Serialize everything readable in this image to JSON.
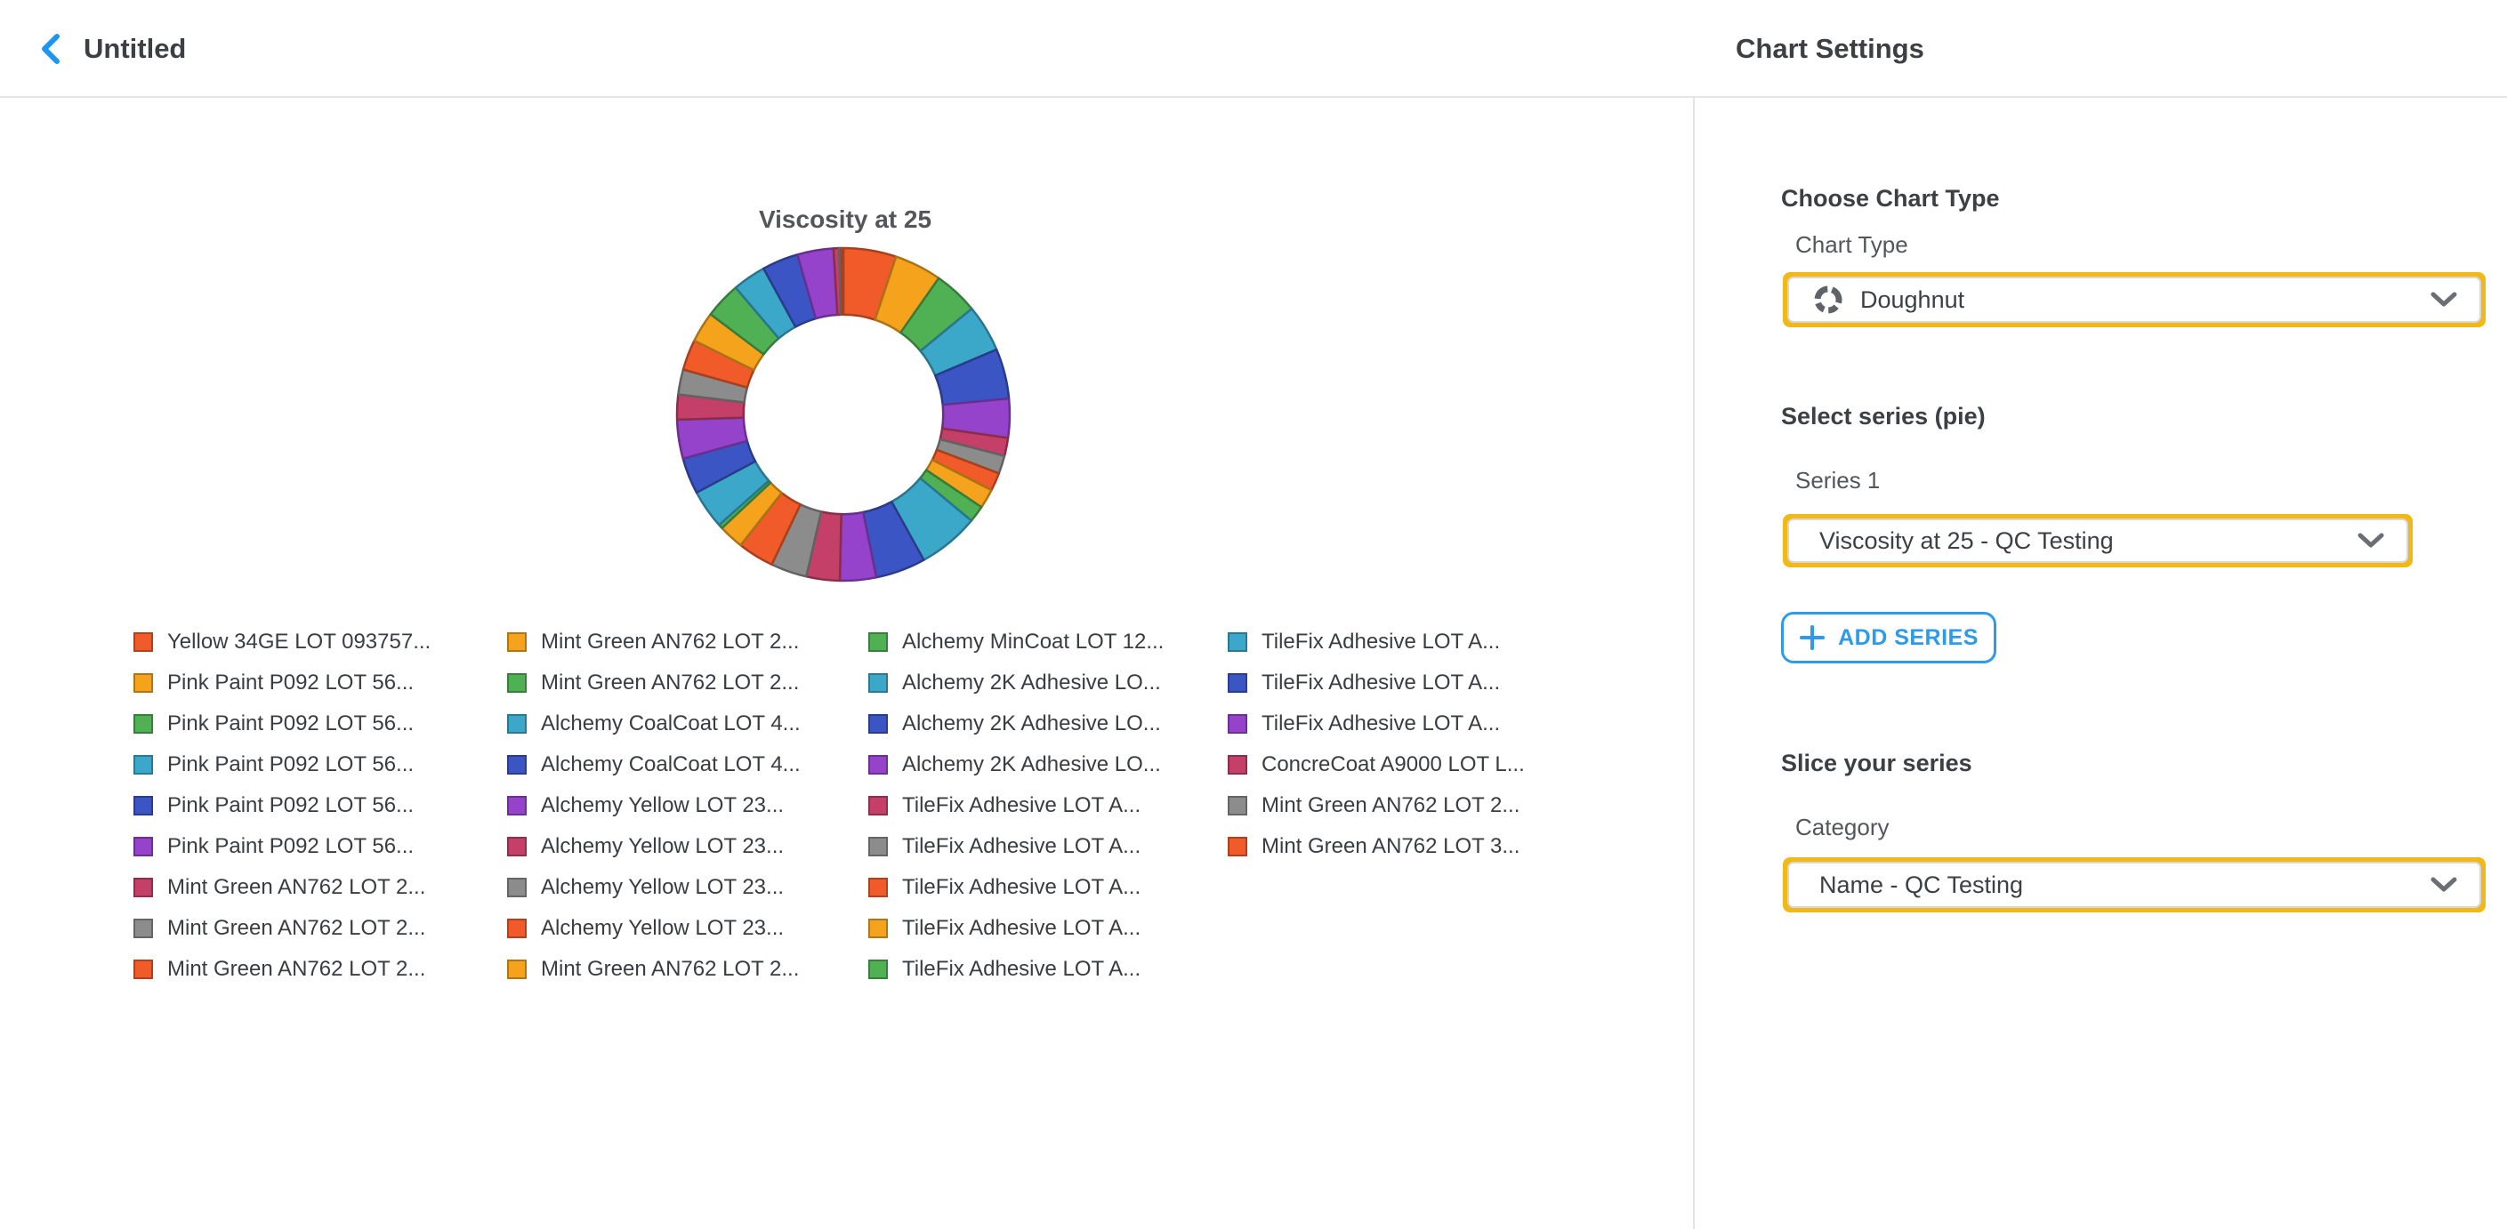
{
  "header": {
    "title": "Untitled",
    "settings_title": "Chart Settings"
  },
  "panel": {
    "choose_chart_type_heading": "Choose Chart Type",
    "chart_type_label": "Chart Type",
    "chart_type_value": "Doughnut",
    "select_series_heading": "Select series (pie)",
    "series_label": "Series 1",
    "series_value": "Viscosity at 25 - QC Testing",
    "add_series_label": "ADD SERIES",
    "slice_heading": "Slice your series",
    "category_label": "Category",
    "category_value": "Name - QC Testing",
    "highlight_color": "#f2b818",
    "accent_blue": "#2e9bea"
  },
  "chart_data": {
    "type": "doughnut",
    "title": "Viscosity at 25",
    "legend_position": "bottom",
    "inner_radius_ratio": 0.6,
    "start_angle_deg": -90,
    "palette": [
      "#f15b2a",
      "#f5a31c",
      "#4fb054",
      "#3ba7c9",
      "#3b55c4",
      "#9643cc",
      "#c44069",
      "#8c8c8c"
    ],
    "labels": [
      "Yellow 34GE LOT 093757...",
      "Pink Paint P092 LOT 56...",
      "Pink Paint P092 LOT 56...",
      "Pink Paint P092 LOT 56...",
      "Pink Paint P092 LOT 56...",
      "Pink Paint P092 LOT 56...",
      "Mint Green AN762 LOT 2...",
      "Mint Green AN762 LOT 2...",
      "Mint Green AN762 LOT 2...",
      "Mint Green AN762 LOT 2...",
      "Mint Green AN762 LOT 2...",
      "Alchemy CoalCoat LOT 4...",
      "Alchemy CoalCoat LOT 4...",
      "Alchemy Yellow  LOT 23...",
      "Alchemy Yellow  LOT 23...",
      "Alchemy Yellow  LOT 23...",
      "Alchemy Yellow  LOT 23...",
      "Mint Green AN762 LOT 2...",
      "Alchemy MinCoat LOT 12...",
      "Alchemy 2K Adhesive LO...",
      "Alchemy 2K Adhesive LO...",
      "Alchemy 2K Adhesive LO...",
      "TileFix Adhesive LOT A...",
      "TileFix Adhesive LOT A...",
      "TileFix Adhesive LOT A...",
      "TileFix Adhesive LOT A...",
      "TileFix Adhesive LOT A...",
      "TileFix Adhesive LOT A...",
      "TileFix Adhesive LOT A...",
      "TileFix Adhesive LOT A...",
      "ConcreCoat A9000 LOT L...",
      "Mint Green AN762 LOT 2...",
      "Mint Green AN762 LOT 3..."
    ],
    "values": [
      19,
      17,
      16,
      17,
      18,
      14,
      6.5,
      6.5,
      6.5,
      7,
      6,
      22,
      18,
      13,
      12,
      13,
      13,
      9,
      1.5,
      14,
      13,
      14,
      9,
      9,
      11,
      11,
      13,
      12,
      13,
      13,
      2,
      0.8,
      0.7
    ]
  }
}
